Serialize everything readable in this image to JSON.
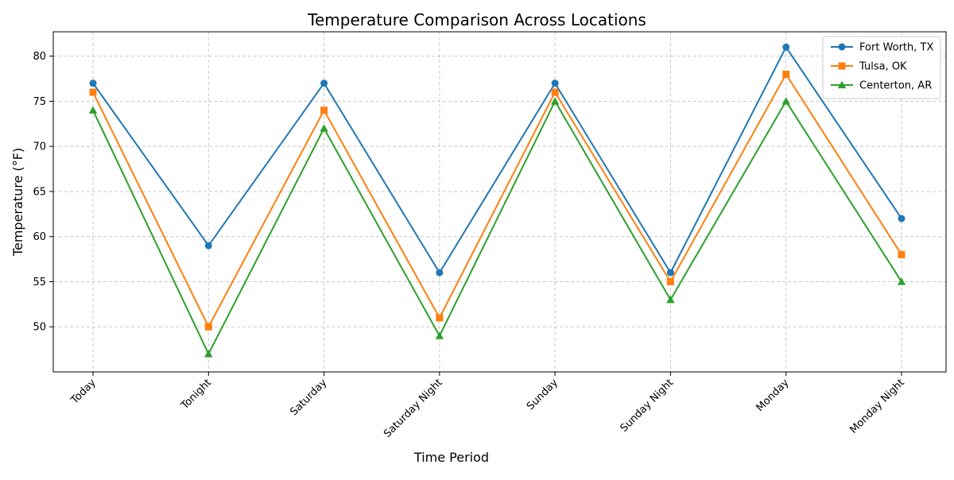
{
  "chart_data": {
    "type": "line",
    "title": "Temperature Comparison Across Locations",
    "xlabel": "Time Period",
    "ylabel": "Temperature (°F)",
    "categories": [
      "Today",
      "Tonight",
      "Saturday",
      "Saturday Night",
      "Sunday",
      "Sunday Night",
      "Monday",
      "Monday Night"
    ],
    "ylim": [
      45,
      82.7
    ],
    "yticks": [
      50,
      55,
      60,
      65,
      70,
      75,
      80
    ],
    "grid": true,
    "legend_position": "top-right",
    "series": [
      {
        "name": "Fort Worth, TX",
        "color": "#1f77b4",
        "marker": "circle",
        "values": [
          77,
          59,
          77,
          56,
          77,
          56,
          81,
          62
        ]
      },
      {
        "name": "Tulsa, OK",
        "color": "#ff7f0e",
        "marker": "square",
        "values": [
          76,
          50,
          74,
          51,
          76,
          55,
          78,
          58
        ]
      },
      {
        "name": "Centerton, AR",
        "color": "#2ca02c",
        "marker": "triangle",
        "values": [
          74,
          47,
          72,
          49,
          75,
          53,
          75,
          55
        ]
      }
    ]
  }
}
